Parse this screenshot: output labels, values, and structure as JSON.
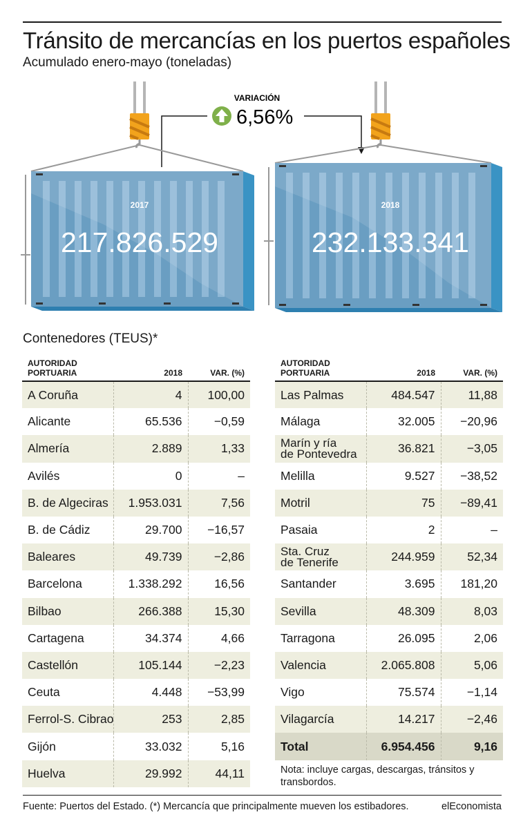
{
  "title": "Tránsito de mercancías en los puertos españoles",
  "subtitle": "Acumulado enero-mayo (toneladas)",
  "chart_data": {
    "type": "table",
    "variation": {
      "label": "VARIACIÓN",
      "value": "6,56%"
    },
    "totals": [
      {
        "year": "2017",
        "value": "217.826.529"
      },
      {
        "year": "2018",
        "value": "232.133.341"
      }
    ],
    "section_title": "Contenedores (TEUS)*",
    "columns": [
      "AUTORIDAD PORTUARIA",
      "2018",
      "VAR. (%)"
    ],
    "left_rows": [
      {
        "port": "A Coruña",
        "teus": "4",
        "var": "100,00"
      },
      {
        "port": "Alicante",
        "teus": "65.536",
        "var": "−0,59"
      },
      {
        "port": "Almería",
        "teus": "2.889",
        "var": "1,33"
      },
      {
        "port": "Avilés",
        "teus": "0",
        "var": "–"
      },
      {
        "port": "B. de Algeciras",
        "teus": "1.953.031",
        "var": "7,56"
      },
      {
        "port": "B. de Cádiz",
        "teus": "29.700",
        "var": "−16,57"
      },
      {
        "port": "Baleares",
        "teus": "49.739",
        "var": "−2,86"
      },
      {
        "port": "Barcelona",
        "teus": "1.338.292",
        "var": "16,56"
      },
      {
        "port": "Bilbao",
        "teus": "266.388",
        "var": "15,30"
      },
      {
        "port": "Cartagena",
        "teus": "34.374",
        "var": "4,66"
      },
      {
        "port": "Castellón",
        "teus": "105.144",
        "var": "−2,23"
      },
      {
        "port": "Ceuta",
        "teus": "4.448",
        "var": "−53,99"
      },
      {
        "port": "Ferrol-S. Cibrao",
        "teus": "253",
        "var": "2,85"
      },
      {
        "port": "Gijón",
        "teus": "33.032",
        "var": "5,16"
      },
      {
        "port": "Huelva",
        "teus": "29.992",
        "var": "44,11"
      }
    ],
    "right_rows": [
      {
        "port": "Las Palmas",
        "teus": "484.547",
        "var": "11,88"
      },
      {
        "port": "Málaga",
        "teus": "32.005",
        "var": "−20,96"
      },
      {
        "port": "Marín y ría de Pontevedra",
        "line1": "Marín y ría",
        "line2": "de Pontevedra",
        "teus": "36.821",
        "var": "−3,05"
      },
      {
        "port": "Melilla",
        "teus": "9.527",
        "var": "−38,52"
      },
      {
        "port": "Motril",
        "teus": "75",
        "var": "−89,41"
      },
      {
        "port": "Pasaia",
        "teus": "2",
        "var": "–"
      },
      {
        "port": "Sta. Cruz de Tenerife",
        "line1": "Sta. Cruz",
        "line2": "de Tenerife",
        "teus": "244.959",
        "var": "52,34"
      },
      {
        "port": "Santander",
        "teus": "3.695",
        "var": "181,20"
      },
      {
        "port": "Sevilla",
        "teus": "48.309",
        "var": "8,03"
      },
      {
        "port": "Tarragona",
        "teus": "26.095",
        "var": "2,06"
      },
      {
        "port": "Valencia",
        "teus": "2.065.808",
        "var": "5,06"
      },
      {
        "port": "Vigo",
        "teus": "75.574",
        "var": "−1,14"
      },
      {
        "port": "Vilagarcía",
        "teus": "14.217",
        "var": "−2,46"
      }
    ],
    "total_row": {
      "port": "Total",
      "teus": "6.954.456",
      "var": "9,16"
    }
  },
  "note": "Nota: incluye cargas, descargas, tránsitos y transbordos.",
  "source": "Fuente: Puertos del Estado. (*) Mercancía que principalmente mueven los estibadores.",
  "brand": "elEconomista",
  "colors": {
    "container_front": "#6a9ec2",
    "container_side": "#3a93c4",
    "container_ribs": "#8fb8d6",
    "hook_orange": "#f2a31c",
    "up_arrow_green": "#7fb04a",
    "row_shade": "#eeeedf",
    "total_shade": "#d9d9c8"
  }
}
